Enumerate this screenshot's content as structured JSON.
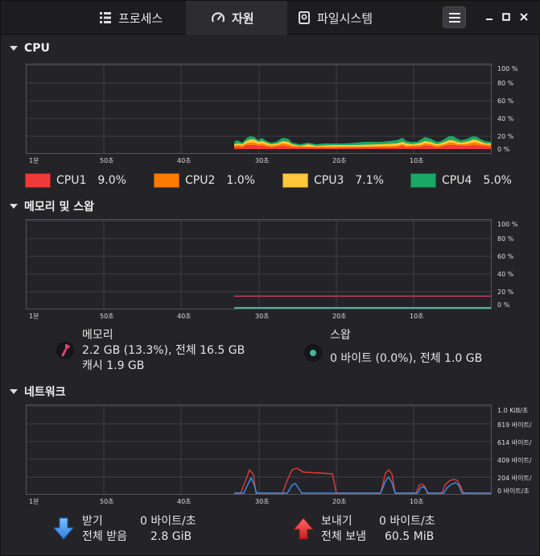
{
  "tabs": [
    {
      "label": "프로세스",
      "icon": "list-icon"
    },
    {
      "label": "자원",
      "icon": "gauge-icon"
    },
    {
      "label": "파일시스템",
      "icon": "disk-icon"
    }
  ],
  "sections": {
    "cpu": "CPU",
    "memory": "메모리 및 스왑",
    "network": "네트워크"
  },
  "percent_axis": [
    "100 %",
    "80 %",
    "60 %",
    "40 %",
    "20 %",
    "0 %"
  ],
  "net_axis": [
    "1.0 KiB/초",
    "819 바이트/",
    "614 바이트/",
    "409 바이트/",
    "204 바이트/",
    "0 바이트/초"
  ],
  "time_axis": [
    "1분",
    "50초",
    "40초",
    "30초",
    "20초",
    "10초"
  ],
  "cpu_legend": [
    {
      "name": "CPU1",
      "value": "9.0%",
      "color": "#f03a3a"
    },
    {
      "name": "CPU2",
      "value": "1.0%",
      "color": "#ff7b00"
    },
    {
      "name": "CPU3",
      "value": "7.1%",
      "color": "#ffc83a"
    },
    {
      "name": "CPU4",
      "value": "5.0%",
      "color": "#1aa866"
    }
  ],
  "memory": {
    "label": "메모리",
    "used": "2.2 GB (13.3%), 전체 16.5 GB",
    "cache": "캐시 1.9 GB",
    "color": "#e0426d"
  },
  "swap": {
    "label": "스왑",
    "used": "0 바이트 (0.0%), 전체 1.0 GB",
    "color": "#3fb59b"
  },
  "network": {
    "receive_label": "받기",
    "receive_rate": "0 바이트/초",
    "receive_total_label": "전체 받음",
    "receive_total": "2.8 GiB",
    "send_label": "보내기",
    "send_rate": "0 바이트/초",
    "send_total_label": "전체 보냄",
    "send_total": "60.5 MiB",
    "receive_color": "#3f8fe8",
    "send_color": "#e23a3a"
  }
}
